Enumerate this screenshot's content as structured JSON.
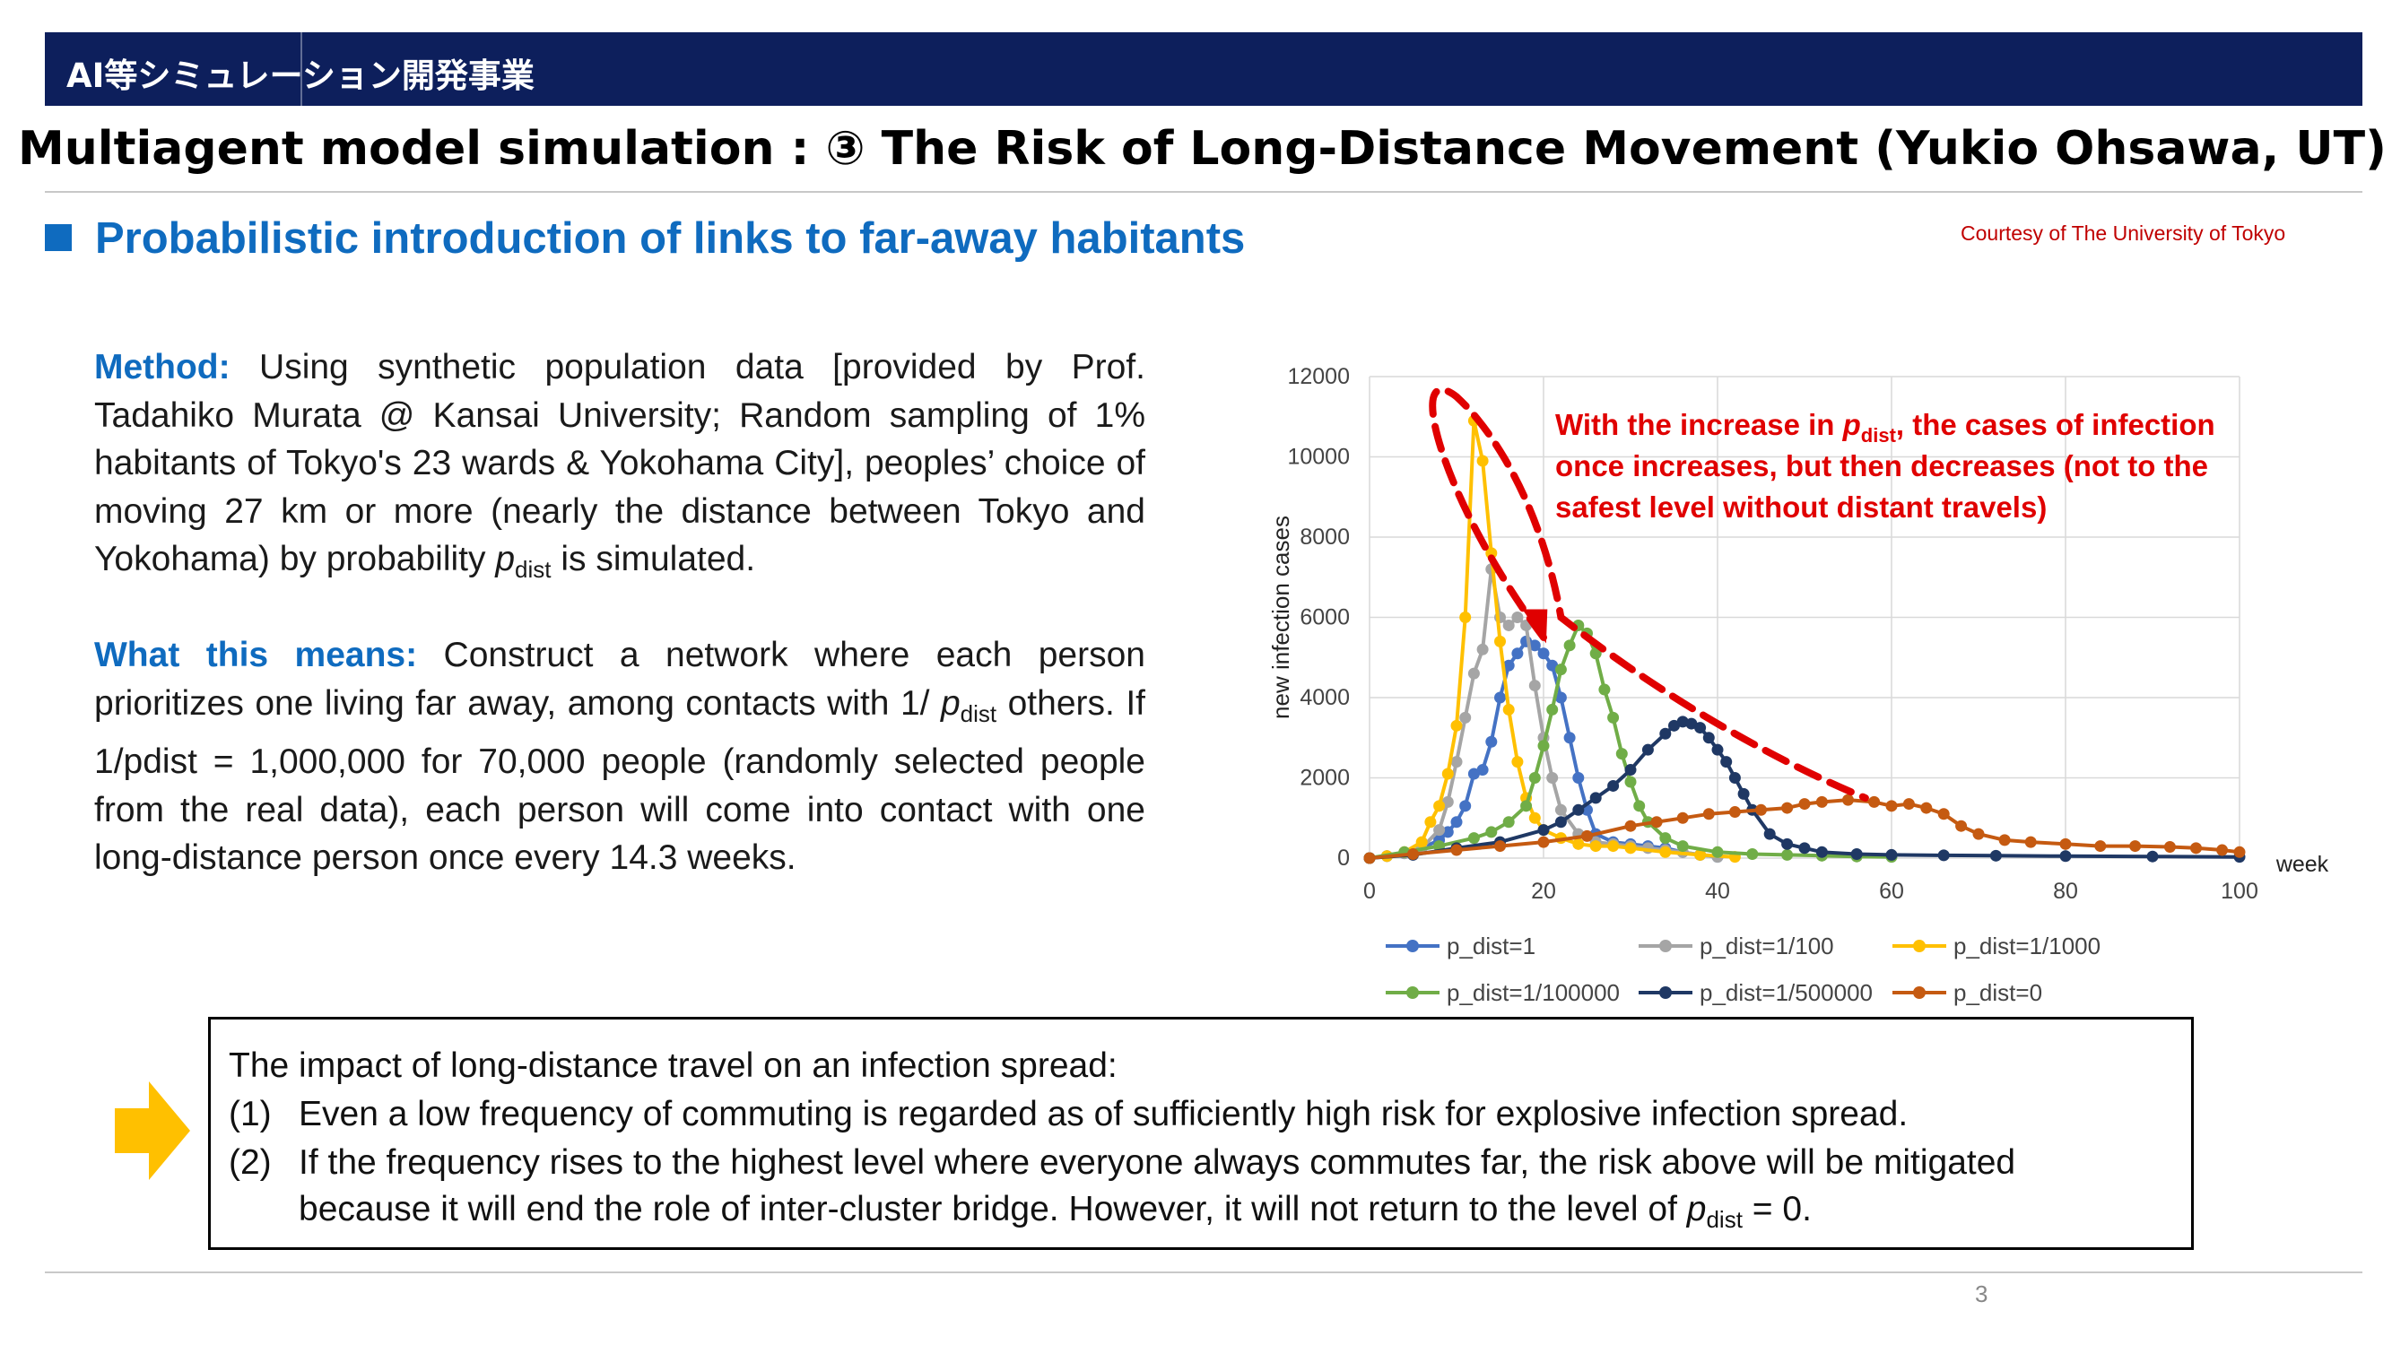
{
  "header": {
    "banner_label": "AI等シミュレーション開発事業",
    "title": "Multiagent model simulation : ③ The Risk of Long-Distance Movement (Yukio Ohsawa, UT)",
    "subtitle": "Probabilistic introduction of links to far-away habitants",
    "courtesy": "Courtesy of The University of Tokyo",
    "accent_color": "#0f6bbf",
    "banner_color": "#0d1f5c"
  },
  "method": {
    "lead": "Method:",
    "text_before": " Using synthetic population data [provided by Prof. Tadahiko Murata @ Kansai University; Random sampling of 1% habitants of Tokyo's 23 wards & Yokohama City], peoples’ choice of moving 27 km or more (nearly the distance between Tokyo and Yokohama) by probability ",
    "var": "p",
    "var_sub": "dist",
    "text_after": " is simulated."
  },
  "meaning": {
    "lead": "What this means:",
    "text_before": " Construct a network where each person prioritizes one living far away, among contacts with 1/ ",
    "var": "p",
    "var_sub": "dist",
    "text_after": " others. If 1/pdist = 1,000,000 for 70,000 people (randomly selected people from the real data), each person will come into contact with one long-distance person once every 14.3 weeks."
  },
  "chart_data": {
    "type": "line",
    "xlabel": "week",
    "ylabel": "new infection cases",
    "xlim": [
      0,
      100
    ],
    "ylim": [
      0,
      12000
    ],
    "xticks": [
      0,
      20,
      40,
      60,
      80,
      100
    ],
    "yticks": [
      0,
      2000,
      4000,
      6000,
      8000,
      10000,
      12000
    ],
    "grid": true,
    "legend_position": "bottom",
    "annotation": {
      "text_1": "With the increase in ",
      "var": "p",
      "var_sub": "dist",
      "text_2": ", the cases of infection",
      "line_2": "once increases, but then decreases (not to the",
      "line_3": "safest level without distant travels)",
      "color": "#e00000"
    },
    "series": [
      {
        "name": "p_dist=1",
        "color": "#4472c4",
        "x": [
          0,
          2,
          4,
          6,
          8,
          9,
          10,
          11,
          12,
          13,
          14,
          15,
          16,
          17,
          18,
          19,
          20,
          21,
          22,
          23,
          24,
          25,
          26,
          28,
          30,
          32,
          34,
          36,
          38,
          40
        ],
        "y": [
          0,
          50,
          120,
          250,
          450,
          650,
          900,
          1300,
          2100,
          2200,
          2900,
          4000,
          4800,
          5100,
          5400,
          5300,
          5100,
          4800,
          4000,
          3000,
          2000,
          1200,
          600,
          400,
          350,
          300,
          250,
          150,
          80,
          30
        ]
      },
      {
        "name": "p_dist=1/100",
        "color": "#a5a5a5",
        "x": [
          0,
          2,
          4,
          6,
          8,
          9,
          10,
          11,
          12,
          13,
          14,
          15,
          16,
          17,
          18,
          19,
          20,
          21,
          22,
          24,
          26,
          28,
          30,
          32,
          34,
          36,
          38,
          40
        ],
        "y": [
          0,
          50,
          120,
          250,
          700,
          1400,
          2400,
          3500,
          4600,
          5200,
          7200,
          6000,
          5800,
          6000,
          5800,
          4300,
          3000,
          2000,
          1200,
          600,
          400,
          350,
          300,
          250,
          200,
          150,
          80,
          30
        ]
      },
      {
        "name": "p_dist=1/1000",
        "color": "#ffc000",
        "x": [
          0,
          2,
          4,
          6,
          7,
          8,
          9,
          10,
          11,
          12,
          13,
          14,
          15,
          16,
          17,
          18,
          19,
          20,
          22,
          24,
          26,
          28,
          30,
          34,
          38,
          42
        ],
        "y": [
          0,
          50,
          150,
          400,
          900,
          1300,
          2100,
          3300,
          6000,
          10900,
          9900,
          7600,
          5400,
          3700,
          2400,
          1500,
          1000,
          700,
          500,
          350,
          300,
          300,
          250,
          150,
          80,
          30
        ]
      },
      {
        "name": "p_dist=1/100000",
        "color": "#70ad47",
        "x": [
          0,
          4,
          8,
          12,
          14,
          16,
          18,
          19,
          20,
          21,
          22,
          23,
          24,
          25,
          26,
          27,
          28,
          29,
          30,
          31,
          32,
          34,
          36,
          40,
          44,
          48,
          52,
          56,
          60
        ],
        "y": [
          0,
          150,
          300,
          500,
          650,
          900,
          1300,
          2000,
          2800,
          3700,
          4700,
          5300,
          5800,
          5600,
          5100,
          4200,
          3500,
          2600,
          1900,
          1300,
          900,
          500,
          300,
          150,
          100,
          80,
          60,
          40,
          30
        ]
      },
      {
        "name": "p_dist=1/500000",
        "color": "#1f3864",
        "x": [
          0,
          5,
          10,
          15,
          20,
          22,
          24,
          26,
          28,
          30,
          32,
          34,
          35,
          36,
          37,
          38,
          39,
          40,
          41,
          42,
          43,
          44,
          46,
          48,
          50,
          52,
          56,
          60,
          66,
          72,
          80,
          90,
          100
        ],
        "y": [
          0,
          80,
          250,
          400,
          700,
          900,
          1200,
          1500,
          1800,
          2200,
          2700,
          3100,
          3300,
          3400,
          3350,
          3250,
          3000,
          2700,
          2400,
          2000,
          1600,
          1200,
          600,
          350,
          250,
          150,
          100,
          80,
          70,
          60,
          50,
          40,
          30
        ]
      },
      {
        "name": "p_dist=0",
        "color": "#c55a11",
        "x": [
          0,
          5,
          10,
          15,
          20,
          25,
          30,
          33,
          36,
          39,
          42,
          45,
          48,
          50,
          52,
          55,
          58,
          60,
          62,
          64,
          66,
          68,
          70,
          73,
          76,
          80,
          84,
          88,
          92,
          95,
          98,
          100
        ],
        "y": [
          0,
          100,
          200,
          300,
          400,
          550,
          800,
          900,
          1000,
          1100,
          1150,
          1200,
          1250,
          1350,
          1400,
          1450,
          1400,
          1300,
          1350,
          1250,
          1100,
          800,
          600,
          450,
          400,
          350,
          300,
          300,
          280,
          250,
          200,
          150
        ]
      }
    ]
  },
  "summary": {
    "heading": "The impact of long-distance travel on an infection spread:",
    "item1_num": "(1)",
    "item1_text": "Even a low frequency of commuting is regarded as of sufficiently high risk for explosive infection spread.",
    "item2_num": "(2)",
    "item2_text": "If the frequency rises to the highest level where everyone always commutes far, the risk above will be mitigated",
    "item2_cont_before": "because it will end the role of inter-cluster bridge. However, it will not return to the level of ",
    "item2_var": "p",
    "item2_var_sub": "dist",
    "item2_cont_after": " = 0.",
    "arrow_color": "#ffc000"
  },
  "footer": {
    "page_number": "3"
  }
}
